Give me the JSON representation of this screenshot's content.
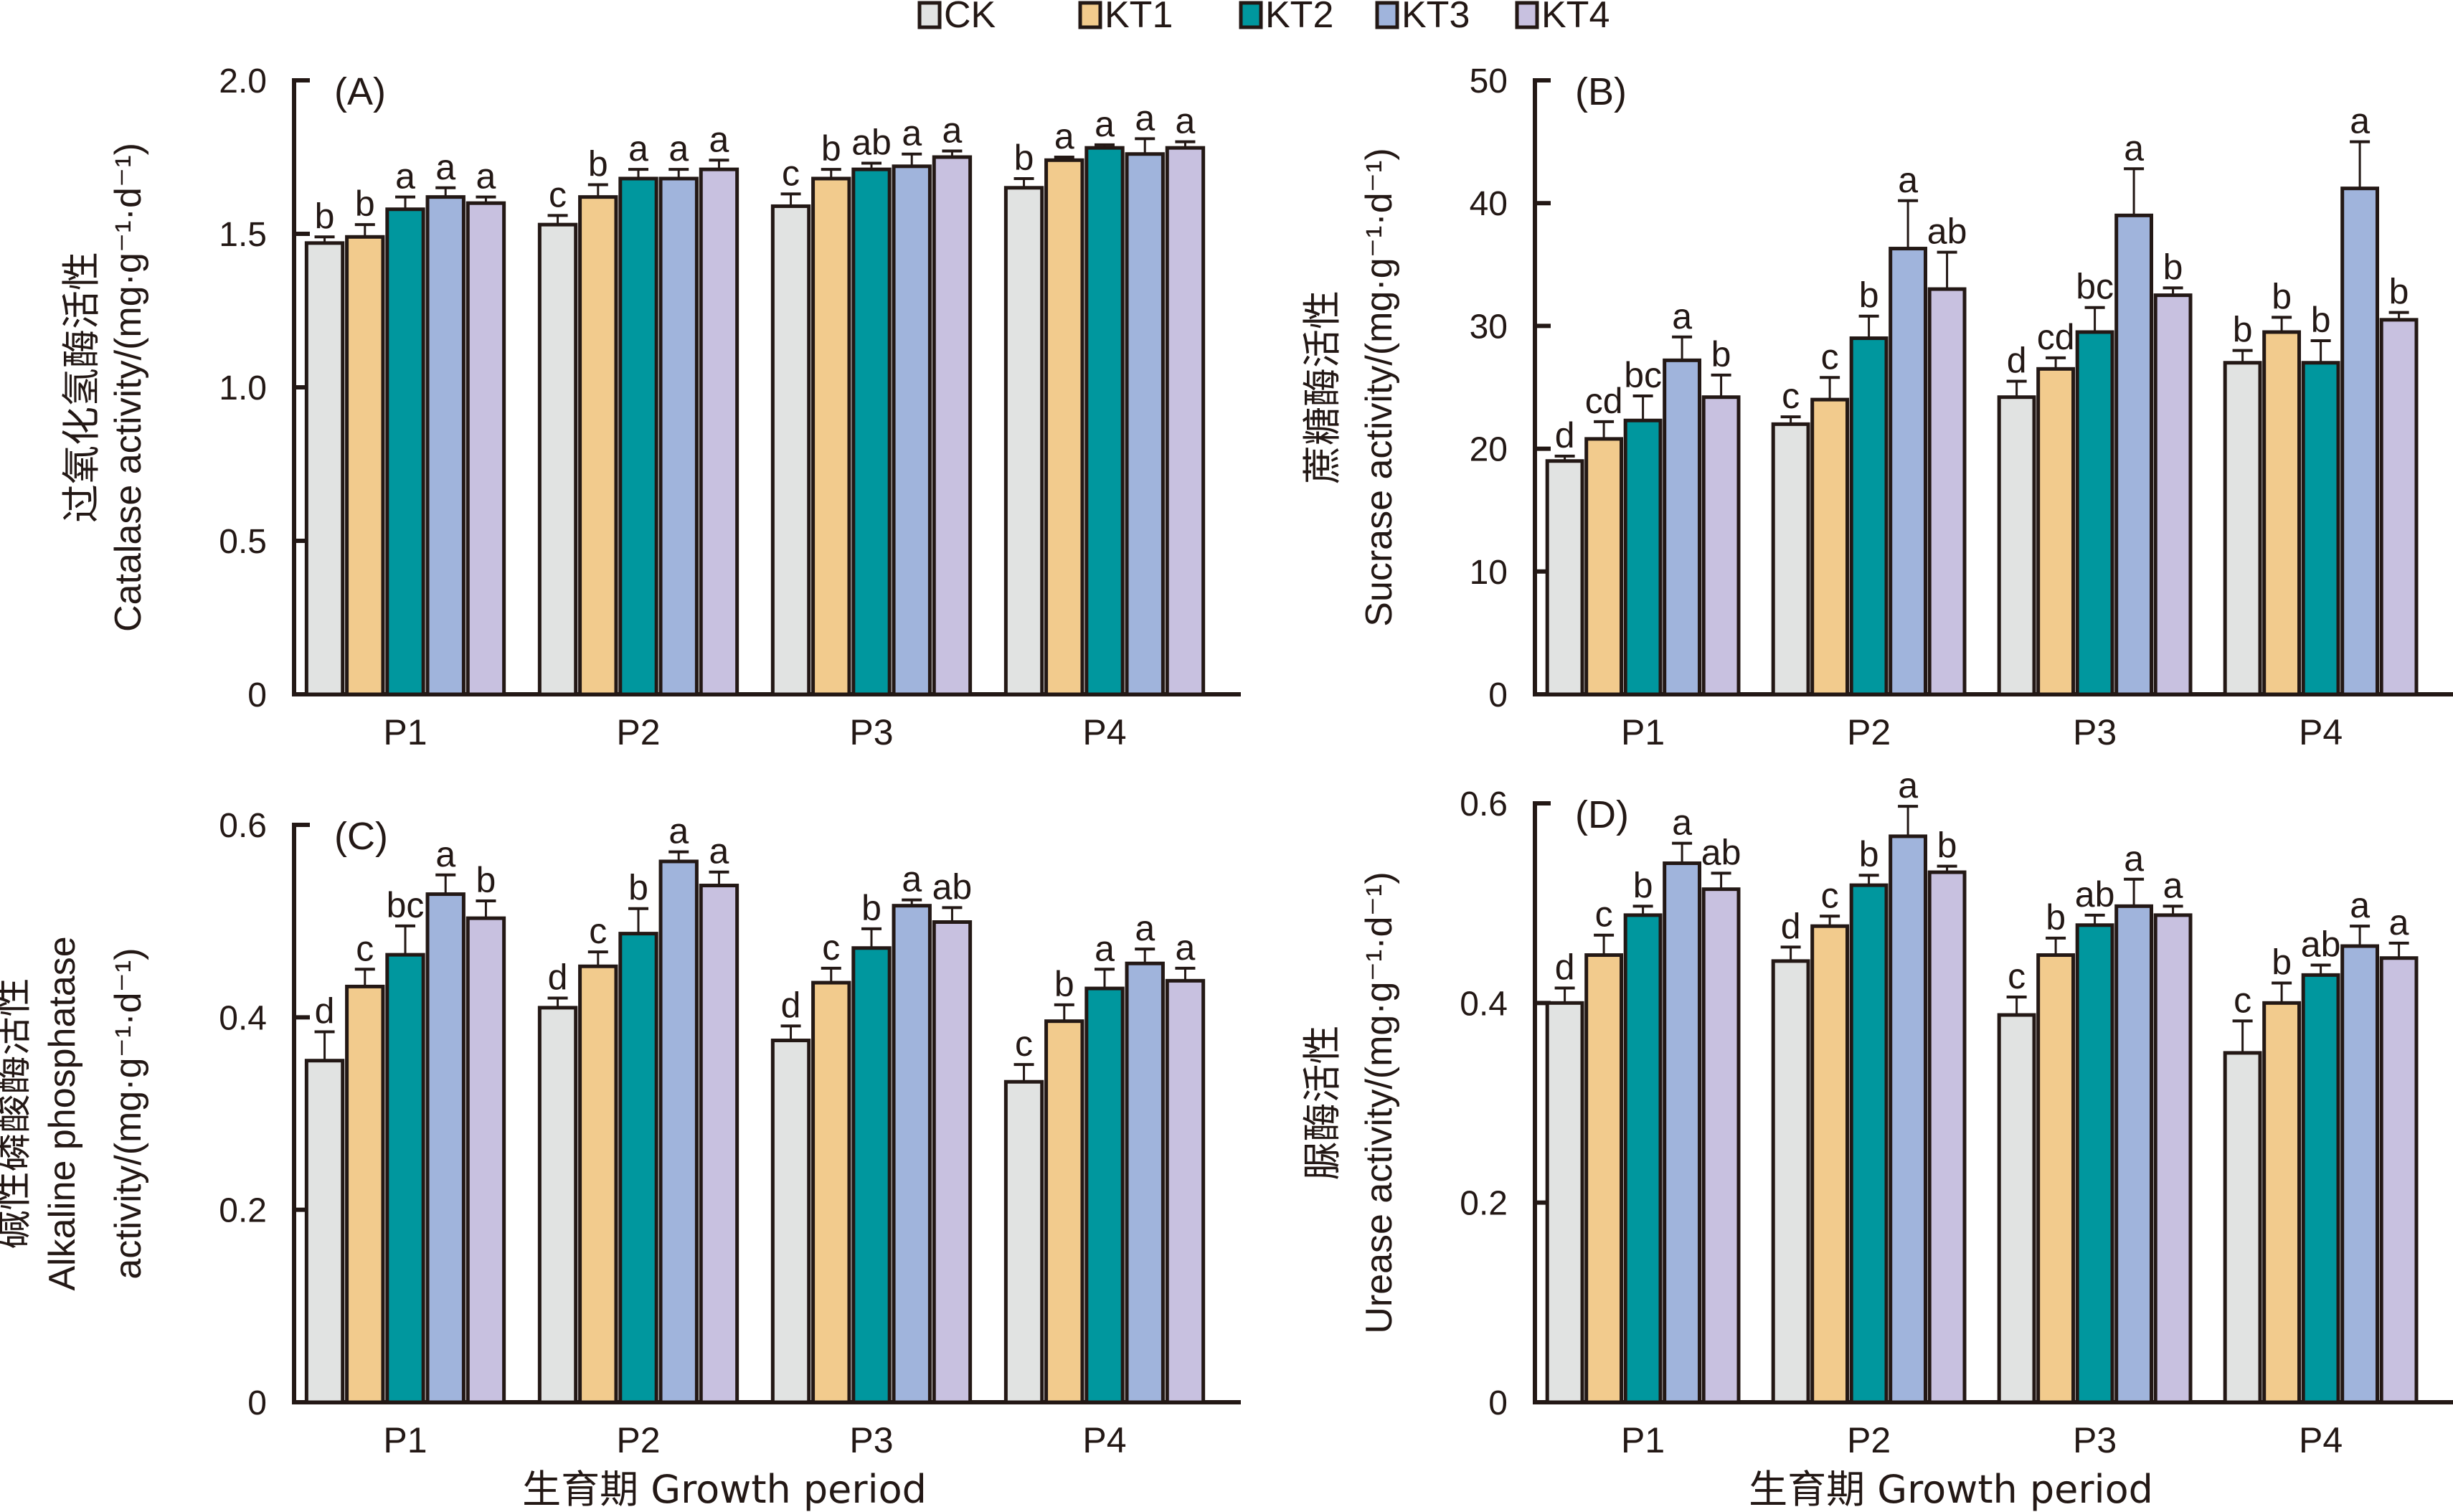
{
  "legend": {
    "items": [
      {
        "label": "CK",
        "color": "#e1e3e2"
      },
      {
        "label": "KT1",
        "color": "#f2cb8d"
      },
      {
        "label": "KT2",
        "color": "#00979e"
      },
      {
        "label": "KT3",
        "color": "#a0b4dc"
      },
      {
        "label": "KT4",
        "color": "#c8c1e0"
      }
    ],
    "placement": "top-center"
  },
  "chart_data": [
    {
      "type": "bar",
      "panel_label": "(A)",
      "title": "",
      "ylabel_cn": "过氧化氢酶活性",
      "ylabel_en": "Catalase activity/(mg·g⁻¹·d⁻¹)",
      "xlabel": "",
      "ylim": [
        0,
        2.0
      ],
      "yticks": [
        "0",
        "0.5",
        "1.0",
        "1.5",
        "2.0"
      ],
      "ytick_values": [
        0,
        0.5,
        1.0,
        1.5,
        2.0
      ],
      "categories": [
        "P1",
        "P2",
        "P3",
        "P4"
      ],
      "series": [
        {
          "name": "CK",
          "values": [
            1.47,
            1.53,
            1.59,
            1.65
          ],
          "errors": [
            0.02,
            0.03,
            0.04,
            0.03
          ],
          "letters": [
            "b",
            "c",
            "c",
            "b"
          ]
        },
        {
          "name": "KT1",
          "values": [
            1.49,
            1.62,
            1.68,
            1.74
          ],
          "errors": [
            0.04,
            0.04,
            0.03,
            0.01
          ],
          "letters": [
            "b",
            "b",
            "b",
            "a"
          ]
        },
        {
          "name": "KT2",
          "values": [
            1.58,
            1.68,
            1.71,
            1.78
          ],
          "errors": [
            0.04,
            0.03,
            0.02,
            0.01
          ],
          "letters": [
            "a",
            "a",
            "ab",
            "a"
          ]
        },
        {
          "name": "KT3",
          "values": [
            1.62,
            1.68,
            1.72,
            1.76
          ],
          "errors": [
            0.03,
            0.03,
            0.04,
            0.05
          ],
          "letters": [
            "a",
            "a",
            "a",
            "a"
          ]
        },
        {
          "name": "KT4",
          "values": [
            1.6,
            1.71,
            1.75,
            1.78
          ],
          "errors": [
            0.02,
            0.03,
            0.02,
            0.02
          ],
          "letters": [
            "a",
            "a",
            "a",
            "a"
          ]
        }
      ],
      "grid": false
    },
    {
      "type": "bar",
      "panel_label": "(B)",
      "title": "",
      "ylabel_cn": "蔗糖酶活性",
      "ylabel_en": "Sucrase activity/(mg·g⁻¹·d⁻¹)",
      "xlabel": "",
      "ylim": [
        0,
        50
      ],
      "yticks": [
        "0",
        "10",
        "20",
        "30",
        "40",
        "50"
      ],
      "ytick_values": [
        0,
        10,
        20,
        30,
        40,
        50
      ],
      "categories": [
        "P1",
        "P2",
        "P3",
        "P4"
      ],
      "series": [
        {
          "name": "CK",
          "values": [
            19.0,
            22.0,
            24.2,
            27.0
          ],
          "errors": [
            0.4,
            0.6,
            1.3,
            1.0
          ],
          "letters": [
            "d",
            "c",
            "d",
            "b"
          ]
        },
        {
          "name": "KT1",
          "values": [
            20.8,
            24.0,
            26.5,
            29.5
          ],
          "errors": [
            1.4,
            1.8,
            0.9,
            1.2
          ],
          "letters": [
            "cd",
            "c",
            "cd",
            "b"
          ]
        },
        {
          "name": "KT2",
          "values": [
            22.3,
            29.0,
            29.5,
            27.0
          ],
          "errors": [
            2.0,
            1.8,
            2.0,
            1.8
          ],
          "letters": [
            "bc",
            "b",
            "bc",
            "b"
          ]
        },
        {
          "name": "KT3",
          "values": [
            27.2,
            36.3,
            39.0,
            41.2
          ],
          "errors": [
            1.9,
            3.9,
            3.8,
            3.8
          ],
          "letters": [
            "a",
            "a",
            "a",
            "a"
          ]
        },
        {
          "name": "KT4",
          "values": [
            24.2,
            33.0,
            32.5,
            30.5
          ],
          "errors": [
            1.8,
            3.0,
            0.6,
            0.6
          ],
          "letters": [
            "b",
            "ab",
            "b",
            "b"
          ]
        }
      ],
      "grid": false
    },
    {
      "type": "bar",
      "panel_label": "(C)",
      "title": "",
      "ylabel_cn": "碱性磷酸酶活性",
      "ylabel_en": "Alkaline phosphatase activity/(mg·g⁻¹·d⁻¹)",
      "xlabel": "生育期 Growth period",
      "ylim": [
        0,
        0.6
      ],
      "yticks": [
        "0",
        "0.2",
        "0.4",
        "0.6"
      ],
      "ytick_values": [
        0,
        0.2,
        0.4,
        0.6
      ],
      "categories": [
        "P1",
        "P2",
        "P3",
        "P4"
      ],
      "series": [
        {
          "name": "CK",
          "values": [
            0.355,
            0.41,
            0.376,
            0.333
          ],
          "errors": [
            0.03,
            0.01,
            0.015,
            0.018
          ],
          "letters": [
            "d",
            "d",
            "d",
            "c"
          ]
        },
        {
          "name": "KT1",
          "values": [
            0.432,
            0.453,
            0.436,
            0.396
          ],
          "errors": [
            0.018,
            0.015,
            0.015,
            0.017
          ],
          "letters": [
            "c",
            "c",
            "c",
            "b"
          ]
        },
        {
          "name": "KT2",
          "values": [
            0.465,
            0.487,
            0.472,
            0.43
          ],
          "errors": [
            0.03,
            0.026,
            0.02,
            0.02
          ],
          "letters": [
            "bc",
            "b",
            "b",
            "a"
          ]
        },
        {
          "name": "KT3",
          "values": [
            0.528,
            0.562,
            0.516,
            0.456
          ],
          "errors": [
            0.02,
            0.01,
            0.006,
            0.015
          ],
          "letters": [
            "a",
            "a",
            "a",
            "a"
          ]
        },
        {
          "name": "KT4",
          "values": [
            0.503,
            0.537,
            0.499,
            0.438
          ],
          "errors": [
            0.018,
            0.014,
            0.015,
            0.013
          ],
          "letters": [
            "b",
            "a",
            "ab",
            "a"
          ]
        }
      ],
      "grid": false
    },
    {
      "type": "bar",
      "panel_label": "(D)",
      "title": "",
      "ylabel_cn": "脲酶活性",
      "ylabel_en": "Urease activity/(mg·g⁻¹·d⁻¹)",
      "xlabel": "生育期 Growth period",
      "ylim": [
        0,
        0.6
      ],
      "yticks": [
        "0",
        "0.2",
        "0.4",
        "0.6"
      ],
      "ytick_values": [
        0,
        0.2,
        0.4,
        0.6
      ],
      "categories": [
        "P1",
        "P2",
        "P3",
        "P4"
      ],
      "series": [
        {
          "name": "CK",
          "values": [
            0.4,
            0.442,
            0.388,
            0.35
          ],
          "errors": [
            0.015,
            0.014,
            0.018,
            0.032
          ],
          "letters": [
            "d",
            "d",
            "c",
            "c"
          ]
        },
        {
          "name": "KT1",
          "values": [
            0.448,
            0.477,
            0.448,
            0.4
          ],
          "errors": [
            0.02,
            0.01,
            0.017,
            0.02
          ],
          "letters": [
            "c",
            "c",
            "b",
            "b"
          ]
        },
        {
          "name": "KT2",
          "values": [
            0.488,
            0.518,
            0.478,
            0.428
          ],
          "errors": [
            0.009,
            0.01,
            0.01,
            0.01
          ],
          "letters": [
            "b",
            "b",
            "ab",
            "ab"
          ]
        },
        {
          "name": "KT3",
          "values": [
            0.54,
            0.567,
            0.497,
            0.457
          ],
          "errors": [
            0.02,
            0.03,
            0.027,
            0.02
          ],
          "letters": [
            "a",
            "a",
            "a",
            "a"
          ]
        },
        {
          "name": "KT4",
          "values": [
            0.514,
            0.531,
            0.488,
            0.445
          ],
          "errors": [
            0.016,
            0.006,
            0.009,
            0.015
          ],
          "letters": [
            "ab",
            "b",
            "a",
            "a"
          ]
        }
      ],
      "grid": false
    }
  ]
}
